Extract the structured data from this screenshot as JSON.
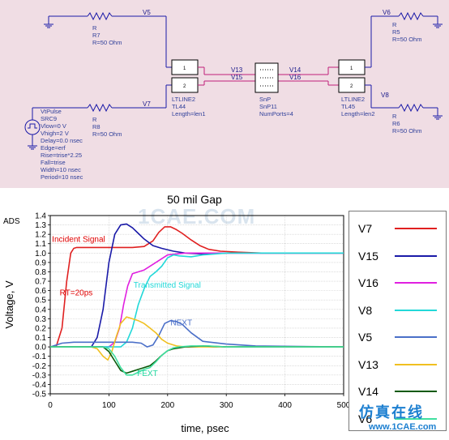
{
  "schematic": {
    "components": {
      "r7": {
        "name": "R",
        "id": "R7",
        "value": "R=50 Ohm"
      },
      "r8": {
        "name": "R",
        "id": "R8",
        "value": "R=50 Ohm"
      },
      "r5": {
        "name": "R",
        "id": "R5",
        "value": "R=50 Ohm"
      },
      "r6": {
        "name": "R",
        "id": "R6",
        "value": "R=50 Ohm"
      },
      "src": {
        "lines": [
          "VtPulse",
          "SRC9",
          "Vlow=0 V",
          "Vhigh=2 V",
          "Delay=0.0 nsec",
          "Edge=erf",
          "Rise=trise*2.25",
          "Fall=trise",
          "Width=10 nsec",
          "Period=10 nsec"
        ]
      },
      "tl44": {
        "lines": [
          "LTLINE2",
          "TL44",
          "Length=len1"
        ]
      },
      "tl45": {
        "lines": [
          "LTLINE2",
          "TL45",
          "Length=len2"
        ]
      },
      "snp": {
        "lines": [
          "SnP",
          "SnP11",
          "NumPorts=4"
        ]
      }
    },
    "nets": [
      "V5",
      "V7",
      "V13",
      "V15",
      "V14",
      "V16",
      "V6",
      "V8"
    ],
    "pins": [
      "1",
      "2",
      "1",
      "2"
    ]
  },
  "chart_title": "50 mil Gap",
  "watermark": "1CAE.COM",
  "brand": {
    "cn": "仿真在线",
    "url": "www.1CAE.com"
  },
  "chart_data": {
    "type": "line",
    "title": "50 mil Gap",
    "xlabel": "time, psec",
    "ylabel": "Voltage, V",
    "xlim": [
      0,
      500
    ],
    "ylim": [
      -0.5,
      1.4
    ],
    "xticks": [
      "0",
      "100",
      "200",
      "300",
      "400",
      "500"
    ],
    "yticks": [
      "1.4",
      "1.3",
      "1.2",
      "1.1",
      "1.0",
      "0.9",
      "0.8",
      "0.7",
      "0.6",
      "0.5",
      "0.4",
      "0.3",
      "0.2",
      "0.1",
      "0.0",
      "-0.1",
      "-0.2",
      "-0.3",
      "-0.4",
      "-0.5"
    ],
    "grid": true,
    "corner_label": "ADS",
    "legend_position": "right",
    "annotations": [
      {
        "text": "Incident Signal",
        "color": "#e00000"
      },
      {
        "text": "RT=20ps",
        "color": "#e00000"
      },
      {
        "text": "Transmitted Signal",
        "color": "#22d8d8"
      },
      {
        "text": "NEXT",
        "color": "#4a6fc8"
      },
      {
        "text": "FEXT",
        "color": "#22d8a0"
      }
    ],
    "series": [
      {
        "name": "V7",
        "color": "#e02020",
        "x": [
          0,
          10,
          20,
          28,
          35,
          40,
          45,
          60,
          100,
          140,
          160,
          175,
          185,
          195,
          205,
          215,
          225,
          240,
          255,
          270,
          290,
          320,
          360,
          500
        ],
        "y": [
          0,
          0,
          0.2,
          0.7,
          1.0,
          1.05,
          1.06,
          1.06,
          1.06,
          1.06,
          1.07,
          1.13,
          1.22,
          1.28,
          1.28,
          1.25,
          1.21,
          1.14,
          1.08,
          1.04,
          1.02,
          1.01,
          1.0,
          1.0
        ]
      },
      {
        "name": "V15",
        "color": "#1a1aa8",
        "x": [
          0,
          60,
          70,
          80,
          90,
          100,
          110,
          120,
          130,
          140,
          150,
          160,
          175,
          190,
          210,
          230,
          260,
          300,
          350,
          500
        ],
        "y": [
          0,
          0,
          0,
          0.1,
          0.4,
          0.9,
          1.2,
          1.3,
          1.31,
          1.27,
          1.21,
          1.15,
          1.08,
          1.05,
          1.02,
          1.0,
          0.99,
          1.0,
          1.0,
          1.0
        ]
      },
      {
        "name": "V16",
        "color": "#e020e0",
        "x": [
          0,
          100,
          110,
          118,
          125,
          132,
          140,
          150,
          160,
          180,
          200,
          230,
          270,
          320,
          500
        ],
        "y": [
          0,
          0,
          0.05,
          0.2,
          0.45,
          0.65,
          0.78,
          0.8,
          0.82,
          0.9,
          0.98,
          1.0,
          1.0,
          1.0,
          1.0
        ]
      },
      {
        "name": "V8",
        "color": "#22d8d8",
        "x": [
          0,
          120,
          130,
          140,
          150,
          160,
          170,
          180,
          190,
          200,
          210,
          220,
          240,
          260,
          300,
          500
        ],
        "y": [
          0,
          0,
          0.05,
          0.2,
          0.45,
          0.62,
          0.75,
          0.8,
          0.86,
          0.95,
          0.98,
          0.97,
          0.96,
          0.98,
          1.0,
          1.0
        ]
      },
      {
        "name": "V5",
        "color": "#4a6fc8",
        "x": [
          0,
          20,
          40,
          60,
          80,
          100,
          120,
          140,
          155,
          165,
          175,
          185,
          195,
          205,
          215,
          225,
          240,
          260,
          300,
          350,
          500
        ],
        "y": [
          0,
          0.04,
          0.05,
          0.05,
          0.05,
          0.05,
          0.05,
          0.05,
          0.04,
          0.0,
          0.02,
          0.12,
          0.25,
          0.28,
          0.27,
          0.24,
          0.15,
          0.06,
          0.03,
          0.01,
          0.0
        ]
      },
      {
        "name": "V13",
        "color": "#f0c020",
        "x": [
          0,
          70,
          80,
          90,
          98,
          105,
          112,
          120,
          130,
          140,
          150,
          160,
          170,
          180,
          190,
          200,
          215,
          230,
          250,
          280,
          320,
          500
        ],
        "y": [
          0,
          0,
          -0.02,
          -0.1,
          -0.14,
          -0.05,
          0.1,
          0.25,
          0.32,
          0.3,
          0.28,
          0.25,
          0.2,
          0.15,
          0.08,
          0.04,
          0.01,
          0.0,
          0.0,
          0.0,
          0.0,
          0.0
        ]
      },
      {
        "name": "V14",
        "color": "#0a5a0a",
        "x": [
          0,
          90,
          100,
          110,
          120,
          130,
          140,
          150,
          160,
          170,
          180,
          190,
          200,
          210,
          230,
          260,
          300,
          500
        ],
        "y": [
          0,
          0,
          -0.05,
          -0.15,
          -0.25,
          -0.28,
          -0.26,
          -0.24,
          -0.22,
          -0.2,
          -0.15,
          -0.09,
          -0.04,
          -0.02,
          0.0,
          0.01,
          0.0,
          0.0
        ]
      },
      {
        "name": "V6",
        "color": "#40e0a0",
        "x": [
          0,
          90,
          100,
          110,
          120,
          130,
          140,
          150,
          160,
          170,
          180,
          190,
          200,
          210,
          220,
          240,
          270,
          300,
          500
        ],
        "y": [
          0,
          0,
          -0.02,
          -0.1,
          -0.22,
          -0.3,
          -0.3,
          -0.27,
          -0.24,
          -0.22,
          -0.16,
          -0.09,
          -0.04,
          -0.01,
          0.0,
          0.01,
          0.01,
          0.0,
          0.0
        ]
      }
    ]
  }
}
